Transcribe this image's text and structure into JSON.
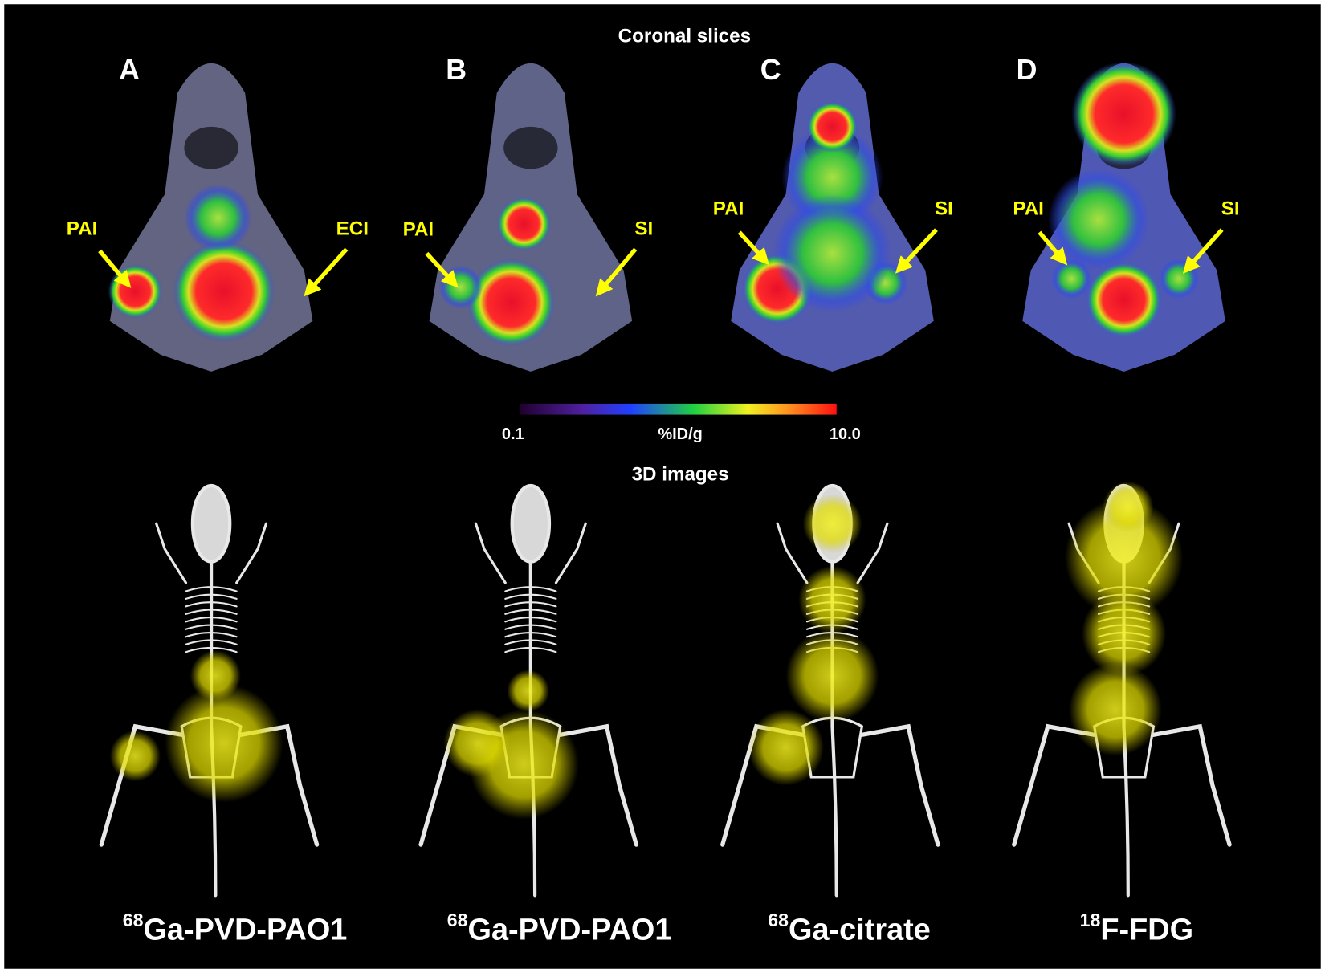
{
  "header": "Coronal slices",
  "panels": [
    {
      "letter": "A",
      "left_label": "PAI",
      "right_label": "ECI",
      "tracer": {
        "mass": "68",
        "name": "Ga-PVD-PAO1"
      }
    },
    {
      "letter": "B",
      "left_label": "PAI",
      "right_label": "SI",
      "tracer": {
        "mass": "68",
        "name": "Ga-PVD-PAO1"
      }
    },
    {
      "letter": "C",
      "left_label": "PAI",
      "right_label": "SI",
      "tracer": {
        "mass": "68",
        "name": "Ga-citrate"
      }
    },
    {
      "letter": "D",
      "left_label": "PAI",
      "right_label": "SI",
      "tracer": {
        "mass": "18",
        "name": "F-FDG"
      }
    }
  ],
  "colorbar": {
    "min": "0.1",
    "unit": "%ID/g",
    "max": "10.0"
  },
  "section_3d": "3D images"
}
